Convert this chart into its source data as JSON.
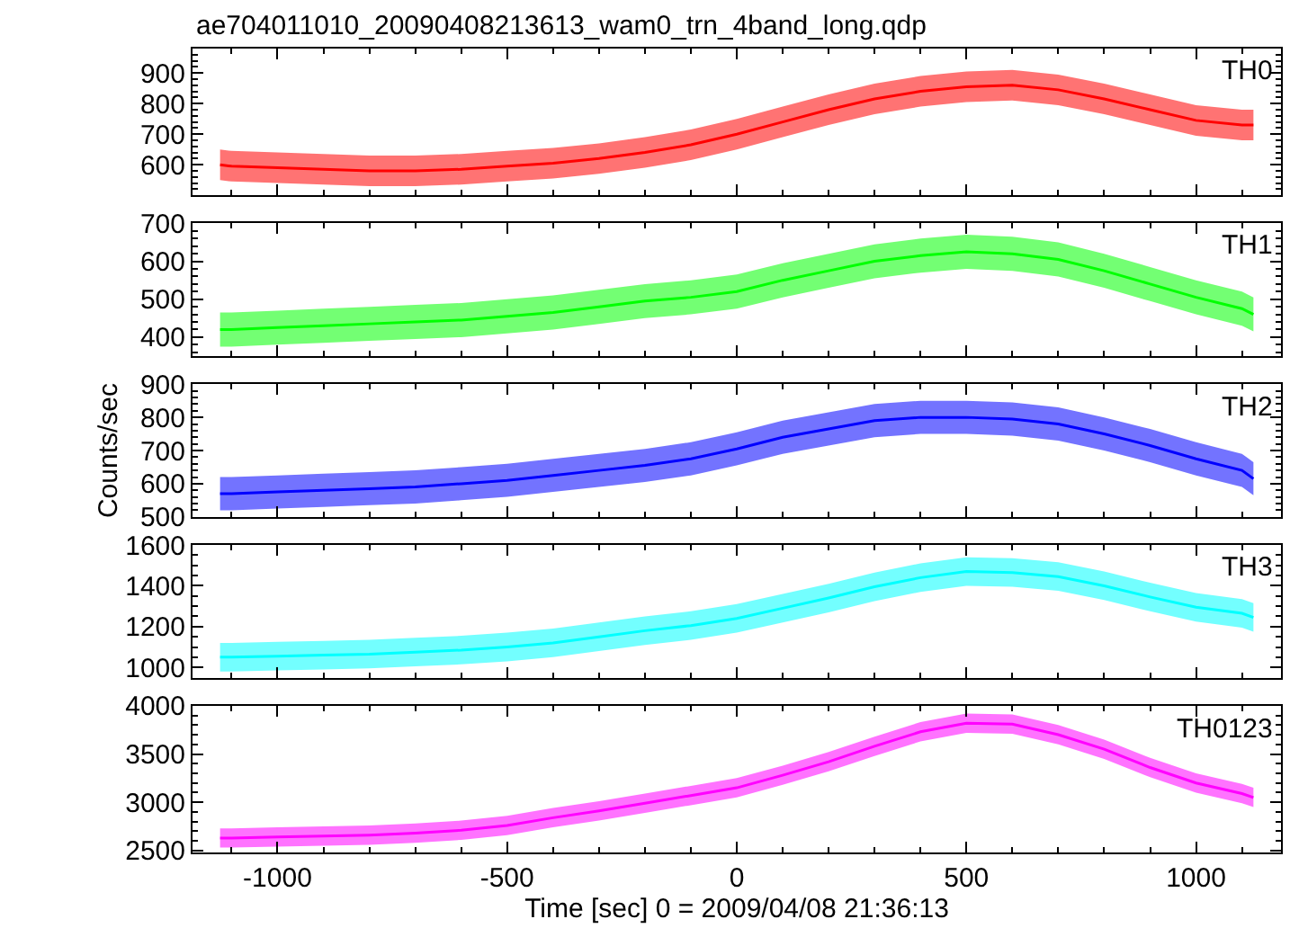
{
  "chart_data": [
    {
      "type": "line",
      "title": "ae704011010_20090408213613_wam0_trn_4band_long.qdp",
      "annotations": [
        "TH0"
      ],
      "x": [
        -1125,
        -1100,
        -1000,
        -900,
        -800,
        -700,
        -600,
        -500,
        -400,
        -300,
        -200,
        -100,
        0,
        100,
        200,
        300,
        400,
        500,
        600,
        700,
        800,
        900,
        1000,
        1100,
        1125
      ],
      "xlim": [
        -1185,
        1185
      ],
      "xticks": [
        -1000,
        -500,
        0,
        500,
        1000
      ],
      "ylim": [
        500,
        980
      ],
      "yticks": [
        600,
        700,
        800,
        900
      ],
      "tick_labels": "y",
      "series": [
        {
          "color": "#ff0000",
          "values": [
            600,
            595,
            590,
            585,
            580,
            580,
            585,
            595,
            605,
            620,
            640,
            665,
            700,
            740,
            780,
            815,
            840,
            855,
            860,
            845,
            815,
            780,
            745,
            730,
            730
          ],
          "lower": [
            550,
            545,
            540,
            535,
            530,
            530,
            535,
            545,
            555,
            570,
            590,
            615,
            650,
            690,
            730,
            765,
            790,
            805,
            810,
            795,
            765,
            730,
            695,
            680,
            680
          ],
          "upper": [
            650,
            645,
            640,
            635,
            630,
            630,
            635,
            645,
            655,
            670,
            690,
            715,
            750,
            790,
            830,
            865,
            890,
            905,
            910,
            895,
            865,
            830,
            795,
            780,
            780
          ]
        }
      ]
    },
    {
      "type": "line",
      "annotations": [
        "TH1"
      ],
      "x": [
        -1125,
        -1100,
        -1000,
        -900,
        -800,
        -700,
        -600,
        -500,
        -400,
        -300,
        -200,
        -100,
        0,
        100,
        200,
        300,
        400,
        500,
        600,
        700,
        800,
        900,
        1000,
        1100,
        1125
      ],
      "xlim": [
        -1185,
        1185
      ],
      "xticks": [
        -1000,
        -500,
        0,
        500,
        1000
      ],
      "ylim": [
        350,
        700
      ],
      "yticks": [
        400,
        500,
        600,
        700
      ],
      "tick_labels": "y",
      "series": [
        {
          "color": "#00ff00",
          "values": [
            420,
            420,
            425,
            430,
            435,
            440,
            445,
            455,
            465,
            480,
            495,
            505,
            520,
            550,
            575,
            600,
            615,
            625,
            620,
            605,
            575,
            540,
            505,
            475,
            460
          ],
          "lower": [
            375,
            375,
            380,
            385,
            390,
            395,
            400,
            410,
            420,
            435,
            450,
            460,
            475,
            505,
            530,
            555,
            570,
            580,
            575,
            560,
            530,
            495,
            460,
            430,
            415
          ],
          "upper": [
            465,
            465,
            470,
            475,
            480,
            485,
            490,
            500,
            510,
            525,
            540,
            550,
            565,
            595,
            620,
            645,
            660,
            670,
            665,
            650,
            620,
            585,
            550,
            520,
            505
          ]
        }
      ]
    },
    {
      "type": "line",
      "ylabel": "Counts/sec",
      "annotations": [
        "TH2"
      ],
      "x": [
        -1125,
        -1100,
        -1000,
        -900,
        -800,
        -700,
        -600,
        -500,
        -400,
        -300,
        -200,
        -100,
        0,
        100,
        200,
        300,
        400,
        500,
        600,
        700,
        800,
        900,
        1000,
        1100,
        1125
      ],
      "xlim": [
        -1185,
        1185
      ],
      "xticks": [
        -1000,
        -500,
        0,
        500,
        1000
      ],
      "ylim": [
        500,
        900
      ],
      "yticks": [
        500,
        600,
        700,
        800,
        900
      ],
      "tick_labels": "y",
      "series": [
        {
          "color": "#0000ff",
          "values": [
            570,
            570,
            575,
            580,
            585,
            590,
            600,
            610,
            625,
            640,
            655,
            675,
            705,
            740,
            765,
            790,
            800,
            800,
            795,
            780,
            750,
            715,
            675,
            640,
            615
          ],
          "lower": [
            520,
            520,
            525,
            530,
            535,
            540,
            550,
            560,
            575,
            590,
            605,
            625,
            655,
            690,
            715,
            740,
            750,
            750,
            745,
            730,
            700,
            665,
            625,
            590,
            565
          ],
          "upper": [
            620,
            620,
            625,
            630,
            635,
            640,
            650,
            660,
            675,
            690,
            705,
            725,
            755,
            790,
            815,
            840,
            850,
            850,
            845,
            830,
            800,
            765,
            725,
            690,
            665
          ]
        }
      ]
    },
    {
      "type": "line",
      "annotations": [
        "TH3"
      ],
      "x": [
        -1125,
        -1100,
        -1000,
        -900,
        -800,
        -700,
        -600,
        -500,
        -400,
        -300,
        -200,
        -100,
        0,
        100,
        200,
        300,
        400,
        500,
        600,
        700,
        800,
        900,
        1000,
        1100,
        1125
      ],
      "xlim": [
        -1185,
        1185
      ],
      "xticks": [
        -1000,
        -500,
        0,
        500,
        1000
      ],
      "ylim": [
        950,
        1600
      ],
      "yticks": [
        1000,
        1200,
        1400,
        1600
      ],
      "tick_labels": "y",
      "series": [
        {
          "color": "#00ffff",
          "values": [
            1050,
            1050,
            1055,
            1060,
            1065,
            1075,
            1085,
            1100,
            1120,
            1150,
            1180,
            1205,
            1240,
            1290,
            1340,
            1395,
            1440,
            1470,
            1465,
            1445,
            1400,
            1345,
            1295,
            1265,
            1245
          ],
          "lower": [
            980,
            980,
            985,
            990,
            995,
            1005,
            1015,
            1030,
            1050,
            1080,
            1110,
            1135,
            1170,
            1220,
            1270,
            1325,
            1370,
            1400,
            1395,
            1375,
            1330,
            1275,
            1225,
            1195,
            1175
          ],
          "upper": [
            1120,
            1120,
            1125,
            1130,
            1135,
            1145,
            1155,
            1170,
            1190,
            1220,
            1250,
            1275,
            1310,
            1360,
            1410,
            1465,
            1510,
            1540,
            1535,
            1515,
            1470,
            1415,
            1365,
            1335,
            1315
          ]
        }
      ]
    },
    {
      "type": "line",
      "xlabel": "Time [sec] 0 = 2009/04/08 21:36:13",
      "annotations": [
        "TH0123"
      ],
      "x": [
        -1125,
        -1100,
        -1000,
        -900,
        -800,
        -700,
        -600,
        -500,
        -400,
        -300,
        -200,
        -100,
        0,
        100,
        200,
        300,
        400,
        500,
        600,
        700,
        800,
        900,
        1000,
        1100,
        1125
      ],
      "xlim": [
        -1185,
        1185
      ],
      "xticks": [
        -1000,
        -500,
        0,
        500,
        1000
      ],
      "ylim": [
        2480,
        4000
      ],
      "yticks": [
        2500,
        3000,
        3500,
        4000
      ],
      "series": [
        {
          "color": "#ff00ff",
          "values": [
            2630,
            2630,
            2640,
            2650,
            2660,
            2680,
            2710,
            2760,
            2840,
            2910,
            2990,
            3070,
            3150,
            3280,
            3420,
            3580,
            3730,
            3820,
            3810,
            3700,
            3550,
            3360,
            3200,
            3090,
            3050
          ],
          "lower": [
            2530,
            2530,
            2540,
            2550,
            2560,
            2580,
            2610,
            2660,
            2740,
            2810,
            2890,
            2970,
            3050,
            3180,
            3320,
            3480,
            3630,
            3720,
            3710,
            3600,
            3450,
            3260,
            3100,
            2990,
            2950
          ],
          "upper": [
            2730,
            2730,
            2740,
            2750,
            2760,
            2780,
            2810,
            2860,
            2940,
            3010,
            3090,
            3170,
            3250,
            3380,
            3520,
            3680,
            3830,
            3920,
            3910,
            3800,
            3650,
            3460,
            3300,
            3190,
            3150
          ]
        }
      ]
    }
  ]
}
